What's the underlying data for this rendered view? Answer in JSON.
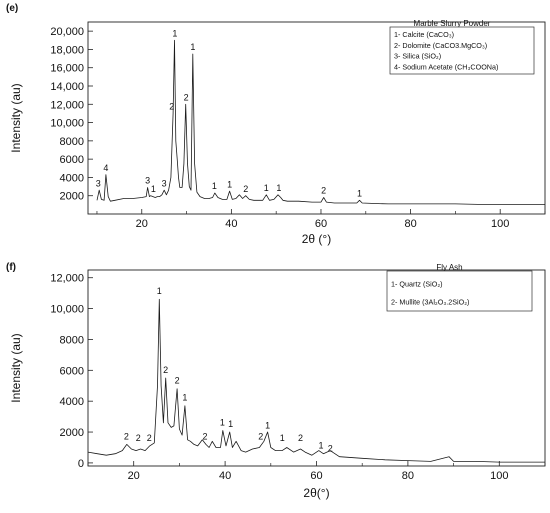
{
  "chart_data": [
    {
      "type": "line",
      "panel": "(e)",
      "xlabel": "2θ (°)",
      "ylabel": "Intensity (au)",
      "xlim": [
        8,
        110
      ],
      "ylim": [
        0,
        21000
      ],
      "xticks": [
        20,
        40,
        60,
        80,
        100
      ],
      "xtick_labels": [
        "20",
        "40",
        "60",
        "80",
        "100"
      ],
      "yticks": [
        2000,
        4000,
        6000,
        8000,
        10000,
        12000,
        14000,
        16000,
        18000,
        20000
      ],
      "ytick_labels": [
        "2000",
        "4000",
        "6000",
        "8000",
        "10,000",
        "12,000",
        "14,000",
        "16,000",
        "18,000",
        "20,000"
      ],
      "grid": false,
      "legend": {
        "placement": "top-right",
        "title": "Marble Slurry Powder",
        "entries": [
          "1- Calcite (CaCO₃)",
          "2- Dolomite (CaCO3.MgCO₃)",
          "3- Silica (SiO₂)",
          "4- Sodium Acetate (CH₃COONa)"
        ]
      },
      "series": [
        {
          "x": [
            10,
            10.5,
            11,
            11.6,
            12,
            12.5,
            13,
            14,
            16,
            18,
            20,
            21,
            21.3,
            21.7,
            22,
            22.5,
            23,
            23.5,
            24,
            24.5,
            25,
            25.5,
            26,
            26.5,
            27,
            27.3,
            27.6,
            27.9,
            28.2,
            28.5,
            29,
            29.4,
            29.8,
            30.2,
            30.6,
            31,
            31.4,
            31.8,
            32.3,
            33,
            34,
            35,
            35.8,
            36.3,
            37,
            37.5,
            38,
            39,
            39.6,
            40.2,
            41,
            41.8,
            42.5,
            43.2,
            44,
            45,
            46,
            47,
            47.8,
            48.5,
            49.5,
            50.4,
            51,
            51.5,
            52.5,
            55,
            58,
            60,
            60.6,
            61.2,
            63,
            65,
            68,
            68.6,
            69.2,
            72,
            75,
            80,
            85,
            90,
            95,
            100,
            105,
            110
          ],
          "y": [
            1500,
            2600,
            1600,
            1500,
            4300,
            1900,
            1400,
            1500,
            1700,
            1700,
            1800,
            1900,
            2900,
            1900,
            2000,
            1900,
            1800,
            1900,
            1900,
            2100,
            2600,
            2100,
            2600,
            4000,
            11000,
            19000,
            8000,
            6000,
            4000,
            2900,
            2900,
            5500,
            12000,
            5500,
            3000,
            2600,
            17500,
            5500,
            2400,
            1900,
            1700,
            1700,
            1800,
            2300,
            1800,
            1700,
            1600,
            1600,
            2500,
            1600,
            1700,
            2100,
            1700,
            2000,
            1600,
            1500,
            1500,
            1500,
            2100,
            1500,
            1600,
            2100,
            1800,
            1500,
            1400,
            1400,
            1300,
            1300,
            1800,
            1300,
            1200,
            1200,
            1200,
            1500,
            1200,
            1150,
            1100,
            1100,
            1100,
            1100,
            1050,
            1050,
            1050,
            1050
          ]
        }
      ],
      "annotations": [
        {
          "x": 10.3,
          "y": 2800,
          "text": "3"
        },
        {
          "x": 12.0,
          "y": 4500,
          "text": "4"
        },
        {
          "x": 21.3,
          "y": 3100,
          "text": "3"
        },
        {
          "x": 22.6,
          "y": 2200,
          "text": "1"
        },
        {
          "x": 25.0,
          "y": 2800,
          "text": "3"
        },
        {
          "x": 26.7,
          "y": 11200,
          "text": "2"
        },
        {
          "x": 27.4,
          "y": 19200,
          "text": "1"
        },
        {
          "x": 29.9,
          "y": 12200,
          "text": "2"
        },
        {
          "x": 31.4,
          "y": 17700,
          "text": "1"
        },
        {
          "x": 36.2,
          "y": 2500,
          "text": "1"
        },
        {
          "x": 39.6,
          "y": 2700,
          "text": "1"
        },
        {
          "x": 43.2,
          "y": 2200,
          "text": "2"
        },
        {
          "x": 47.8,
          "y": 2300,
          "text": "1"
        },
        {
          "x": 50.6,
          "y": 2300,
          "text": "1"
        },
        {
          "x": 60.6,
          "y": 2000,
          "text": "2"
        },
        {
          "x": 68.6,
          "y": 1700,
          "text": "1"
        }
      ]
    },
    {
      "type": "line",
      "panel": "(f)",
      "xlabel": "2θ(°)",
      "ylabel": "Intensity (au)",
      "xlim": [
        10,
        110
      ],
      "ylim": [
        -200,
        12500
      ],
      "xticks": [
        20,
        40,
        60,
        80,
        100
      ],
      "xtick_labels": [
        "20",
        "40",
        "60",
        "80",
        "100"
      ],
      "yticks": [
        0,
        2000,
        4000,
        6000,
        8000,
        10000,
        12000
      ],
      "ytick_labels": [
        "0",
        "2000",
        "4000",
        "6000",
        "8000",
        "10,000",
        "12,000"
      ],
      "grid": false,
      "legend": {
        "placement": "top-right",
        "title": "Fly Ash",
        "entries": [
          "1- Quartz (SiO₂)",
          "2- Mullite (3Al₂O₃.2SiO₂)"
        ]
      },
      "series": [
        {
          "x": [
            10,
            12,
            14,
            16,
            17.5,
            18.5,
            19.5,
            20.5,
            21.5,
            22.5,
            23.5,
            24.5,
            25.2,
            25.6,
            26,
            26.5,
            27,
            27.5,
            28.2,
            28.8,
            29.5,
            30,
            30.6,
            31.2,
            31.8,
            32.4,
            33.2,
            34,
            35,
            35.8,
            36.5,
            37.2,
            38,
            39,
            39.5,
            40.2,
            41,
            41.6,
            42.4,
            43.5,
            44.5,
            46,
            47.5,
            48.5,
            49.3,
            50,
            51,
            52.5,
            53.5,
            55,
            56.5,
            57.5,
            59,
            60.5,
            61.5,
            63,
            65,
            70,
            75,
            80,
            85,
            89,
            90,
            95,
            100,
            105,
            110
          ],
          "y": [
            700,
            600,
            500,
            600,
            800,
            1200,
            900,
            800,
            900,
            800,
            1100,
            1300,
            5000,
            10600,
            5000,
            2600,
            5500,
            2600,
            2300,
            2400,
            4800,
            2200,
            1800,
            3700,
            1500,
            1400,
            1200,
            1100,
            1500,
            1200,
            1000,
            1400,
            1000,
            1000,
            2100,
            1100,
            2000,
            1000,
            1400,
            800,
            700,
            900,
            1000,
            1400,
            2000,
            1000,
            800,
            800,
            1000,
            700,
            900,
            700,
            500,
            800,
            600,
            800,
            400,
            300,
            200,
            150,
            100,
            400,
            100,
            100,
            50,
            50,
            50
          ]
        }
      ],
      "annotations": [
        {
          "x": 18.4,
          "y": 1400,
          "text": "2"
        },
        {
          "x": 21.0,
          "y": 1300,
          "text": "2"
        },
        {
          "x": 23.4,
          "y": 1300,
          "text": "2"
        },
        {
          "x": 25.6,
          "y": 10800,
          "text": "1"
        },
        {
          "x": 27.0,
          "y": 5700,
          "text": "2"
        },
        {
          "x": 29.5,
          "y": 5000,
          "text": "2"
        },
        {
          "x": 31.2,
          "y": 3900,
          "text": "1"
        },
        {
          "x": 35.6,
          "y": 1400,
          "text": "2"
        },
        {
          "x": 39.4,
          "y": 2300,
          "text": "1"
        },
        {
          "x": 41.2,
          "y": 2200,
          "text": "1"
        },
        {
          "x": 47.8,
          "y": 1400,
          "text": "2"
        },
        {
          "x": 49.3,
          "y": 2100,
          "text": "1"
        },
        {
          "x": 52.5,
          "y": 1300,
          "text": "1"
        },
        {
          "x": 56.5,
          "y": 1300,
          "text": "2"
        },
        {
          "x": 61.0,
          "y": 800,
          "text": "1"
        },
        {
          "x": 63.0,
          "y": 600,
          "text": "2"
        }
      ]
    }
  ]
}
